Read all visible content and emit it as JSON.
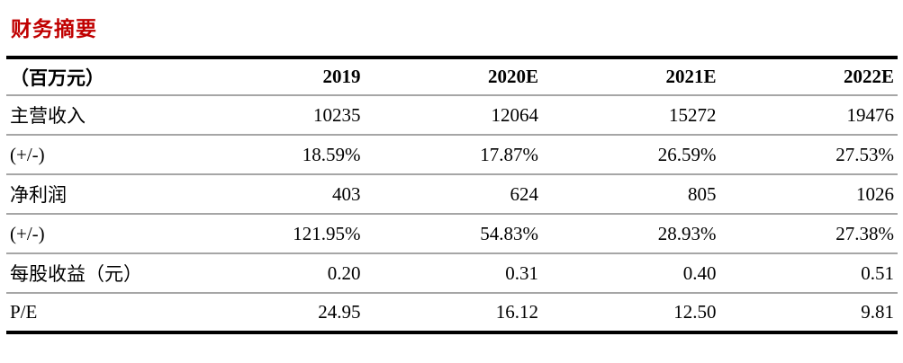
{
  "title": "财务摘要",
  "accent_color": "#c00000",
  "table": {
    "unit_header": "（百万元）",
    "columns": [
      "2019",
      "2020E",
      "2021E",
      "2022E"
    ],
    "rows": [
      {
        "label": "主营收入",
        "values": [
          "10235",
          "12064",
          "15272",
          "19476"
        ]
      },
      {
        "label": "(+/-)",
        "values": [
          "18.59%",
          "17.87%",
          "26.59%",
          "27.53%"
        ]
      },
      {
        "label": "净利润",
        "values": [
          "403",
          "624",
          "805",
          "1026"
        ]
      },
      {
        "label": "(+/-)",
        "values": [
          "121.95%",
          "54.83%",
          "28.93%",
          "27.38%"
        ]
      },
      {
        "label": "每股收益（元）",
        "values": [
          "0.20",
          "0.31",
          "0.40",
          "0.51"
        ]
      },
      {
        "label": "P/E",
        "values": [
          "24.95",
          "16.12",
          "12.50",
          "9.81"
        ]
      }
    ]
  }
}
